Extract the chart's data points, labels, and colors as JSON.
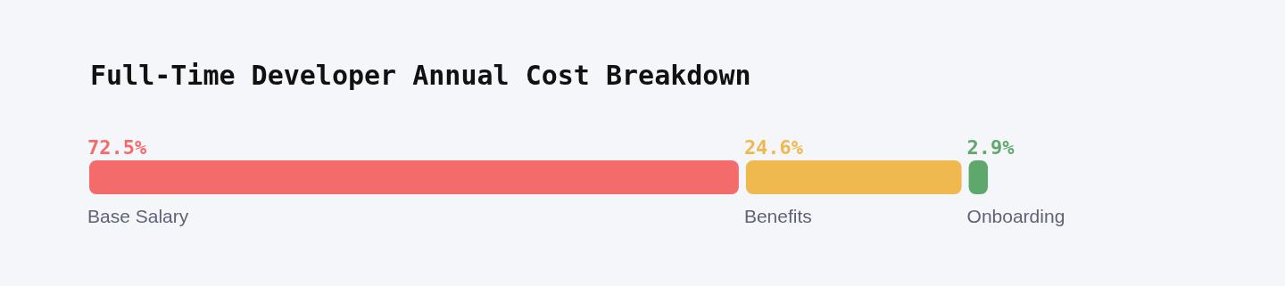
{
  "chart_data": {
    "type": "bar",
    "title": "Full-Time Developer Annual Cost Breakdown",
    "orientation": "horizontal",
    "stacked": true,
    "categories": [
      null
    ],
    "series": [
      {
        "name": "Base Salary",
        "color": "#f46b6b",
        "values": [
          72.5
        ],
        "value_labels": [
          "72.5%"
        ]
      },
      {
        "name": "Benefits",
        "color": "#f0b94f",
        "values": [
          24.6
        ],
        "value_labels": [
          "24.6%"
        ]
      },
      {
        "name": "Onboarding",
        "color": "#5fa86b",
        "values": [
          2.9
        ],
        "value_labels": [
          "2.9%"
        ]
      }
    ]
  }
}
